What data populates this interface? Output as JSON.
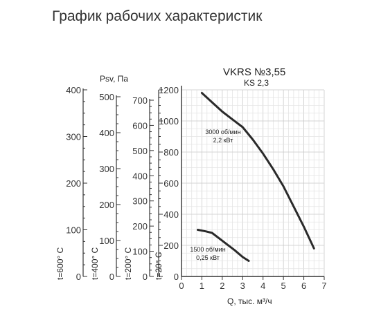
{
  "page_title": "График рабочих характеристик",
  "chart_data": {
    "type": "line",
    "title": "VKRS №3,55",
    "subtitle": "KS 2,3",
    "xlabel": "Q, тыс. м³/ч",
    "ylabel": "",
    "xlim": [
      0,
      7
    ],
    "ylim": [
      0,
      1200
    ],
    "xticks": [
      "0",
      "1",
      "2",
      "3",
      "4",
      "5",
      "6",
      "7"
    ],
    "yticks": [
      "0",
      "200",
      "400",
      "600",
      "800",
      "1000",
      "1200"
    ],
    "grid": true,
    "series": [
      {
        "name_lines": [
          "3000 об/мин",
          "2,2 кВт"
        ],
        "x": [
          1.0,
          1.5,
          2.0,
          2.5,
          3.0,
          3.5,
          4.0,
          4.5,
          5.0,
          5.5,
          6.0,
          6.5
        ],
        "y": [
          1180,
          1120,
          1060,
          1010,
          960,
          880,
          790,
          690,
          580,
          450,
          320,
          180
        ]
      },
      {
        "name_lines": [
          "1500 об/мин",
          "0,25 кВт"
        ],
        "x": [
          0.8,
          1.2,
          1.5,
          1.8,
          2.2,
          2.6,
          3.0,
          3.3
        ],
        "y": [
          300,
          290,
          280,
          250,
          210,
          170,
          125,
          100
        ]
      }
    ],
    "secondary_axes": [
      {
        "ticks": [
          "0",
          "100",
          "200",
          "300",
          "400"
        ],
        "max": 400,
        "label": "t=600° C"
      },
      {
        "title": "Psv, Па",
        "ticks": [
          "0",
          "100",
          "200",
          "300",
          "400",
          "500"
        ],
        "max": 500,
        "label": "t=400° C"
      },
      {
        "ticks": [
          "0",
          "100",
          "200",
          "300",
          "400",
          "500",
          "600",
          "700"
        ],
        "max": 700,
        "label": "t=200° C"
      },
      {
        "ticks": [
          "0",
          "200",
          "400",
          "600",
          "800",
          "1000",
          "1200"
        ],
        "max": 1200,
        "label": "t=20° C"
      }
    ]
  }
}
